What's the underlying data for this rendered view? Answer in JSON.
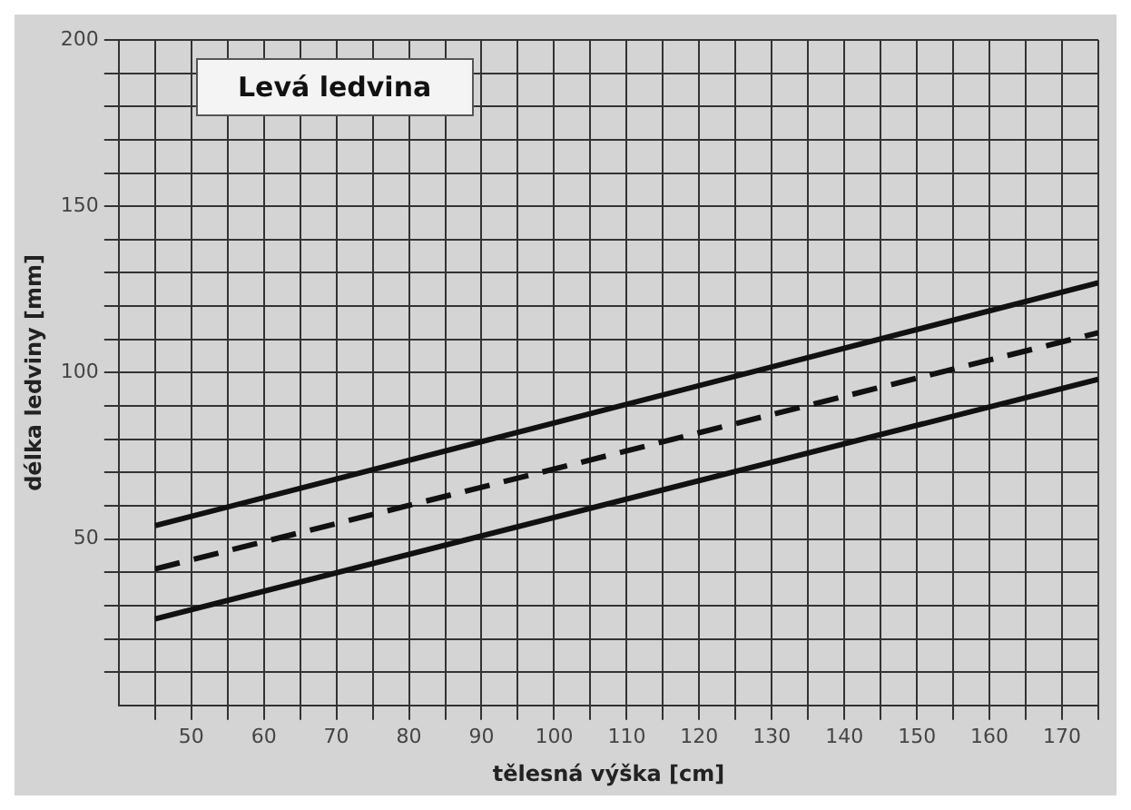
{
  "chart_data": {
    "type": "line",
    "title": "Levá ledvina",
    "xlabel": "tělesná výška [cm]",
    "ylabel": "délka ledviny [mm]",
    "x": [
      45,
      175
    ],
    "series": [
      {
        "color": "#111111",
        "values": [
          54,
          127
        ],
        "line_style": "solid"
      },
      {
        "color": "#111111",
        "values": [
          41,
          112
        ],
        "line_style": "dashed"
      },
      {
        "color": "#111111",
        "values": [
          26,
          98
        ],
        "line_style": "solid"
      }
    ],
    "xlim": [
      40,
      175
    ],
    "xticks": [
      {
        "value": 45,
        "label": null
      },
      50,
      {
        "value": 55,
        "label": null
      },
      60,
      {
        "value": 65,
        "label": null
      },
      70,
      {
        "value": 75,
        "label": null
      },
      80,
      {
        "value": 85,
        "label": null
      },
      90,
      {
        "value": 95,
        "label": null
      },
      100,
      {
        "value": 105,
        "label": null
      },
      110,
      {
        "value": 115,
        "label": null
      },
      120,
      {
        "value": 125,
        "label": null
      },
      130,
      {
        "value": 135,
        "label": null
      },
      140,
      {
        "value": 145,
        "label": null
      },
      150,
      {
        "value": 155,
        "label": null
      },
      160,
      {
        "value": 165,
        "label": null
      },
      170,
      {
        "value": 175,
        "label": null
      }
    ],
    "ylim": [
      0,
      200
    ],
    "yticks": [
      {
        "value": 10,
        "label": null
      },
      {
        "value": 20,
        "label": null
      },
      {
        "value": 30,
        "label": null
      },
      {
        "value": 40,
        "label": null
      },
      50,
      {
        "value": 60,
        "label": null
      },
      {
        "value": 70,
        "label": null
      },
      {
        "value": 80,
        "label": null
      },
      {
        "value": 90,
        "label": null
      },
      100,
      {
        "value": 110,
        "label": null
      },
      {
        "value": 120,
        "label": null
      },
      {
        "value": 130,
        "label": null
      },
      {
        "value": 140,
        "label": null
      },
      150,
      {
        "value": 160,
        "label": null
      },
      {
        "value": 170,
        "label": null
      },
      {
        "value": 180,
        "label": null
      },
      {
        "value": 190,
        "label": null
      },
      200
    ],
    "grid": true,
    "marker": "none",
    "legend": false
  }
}
